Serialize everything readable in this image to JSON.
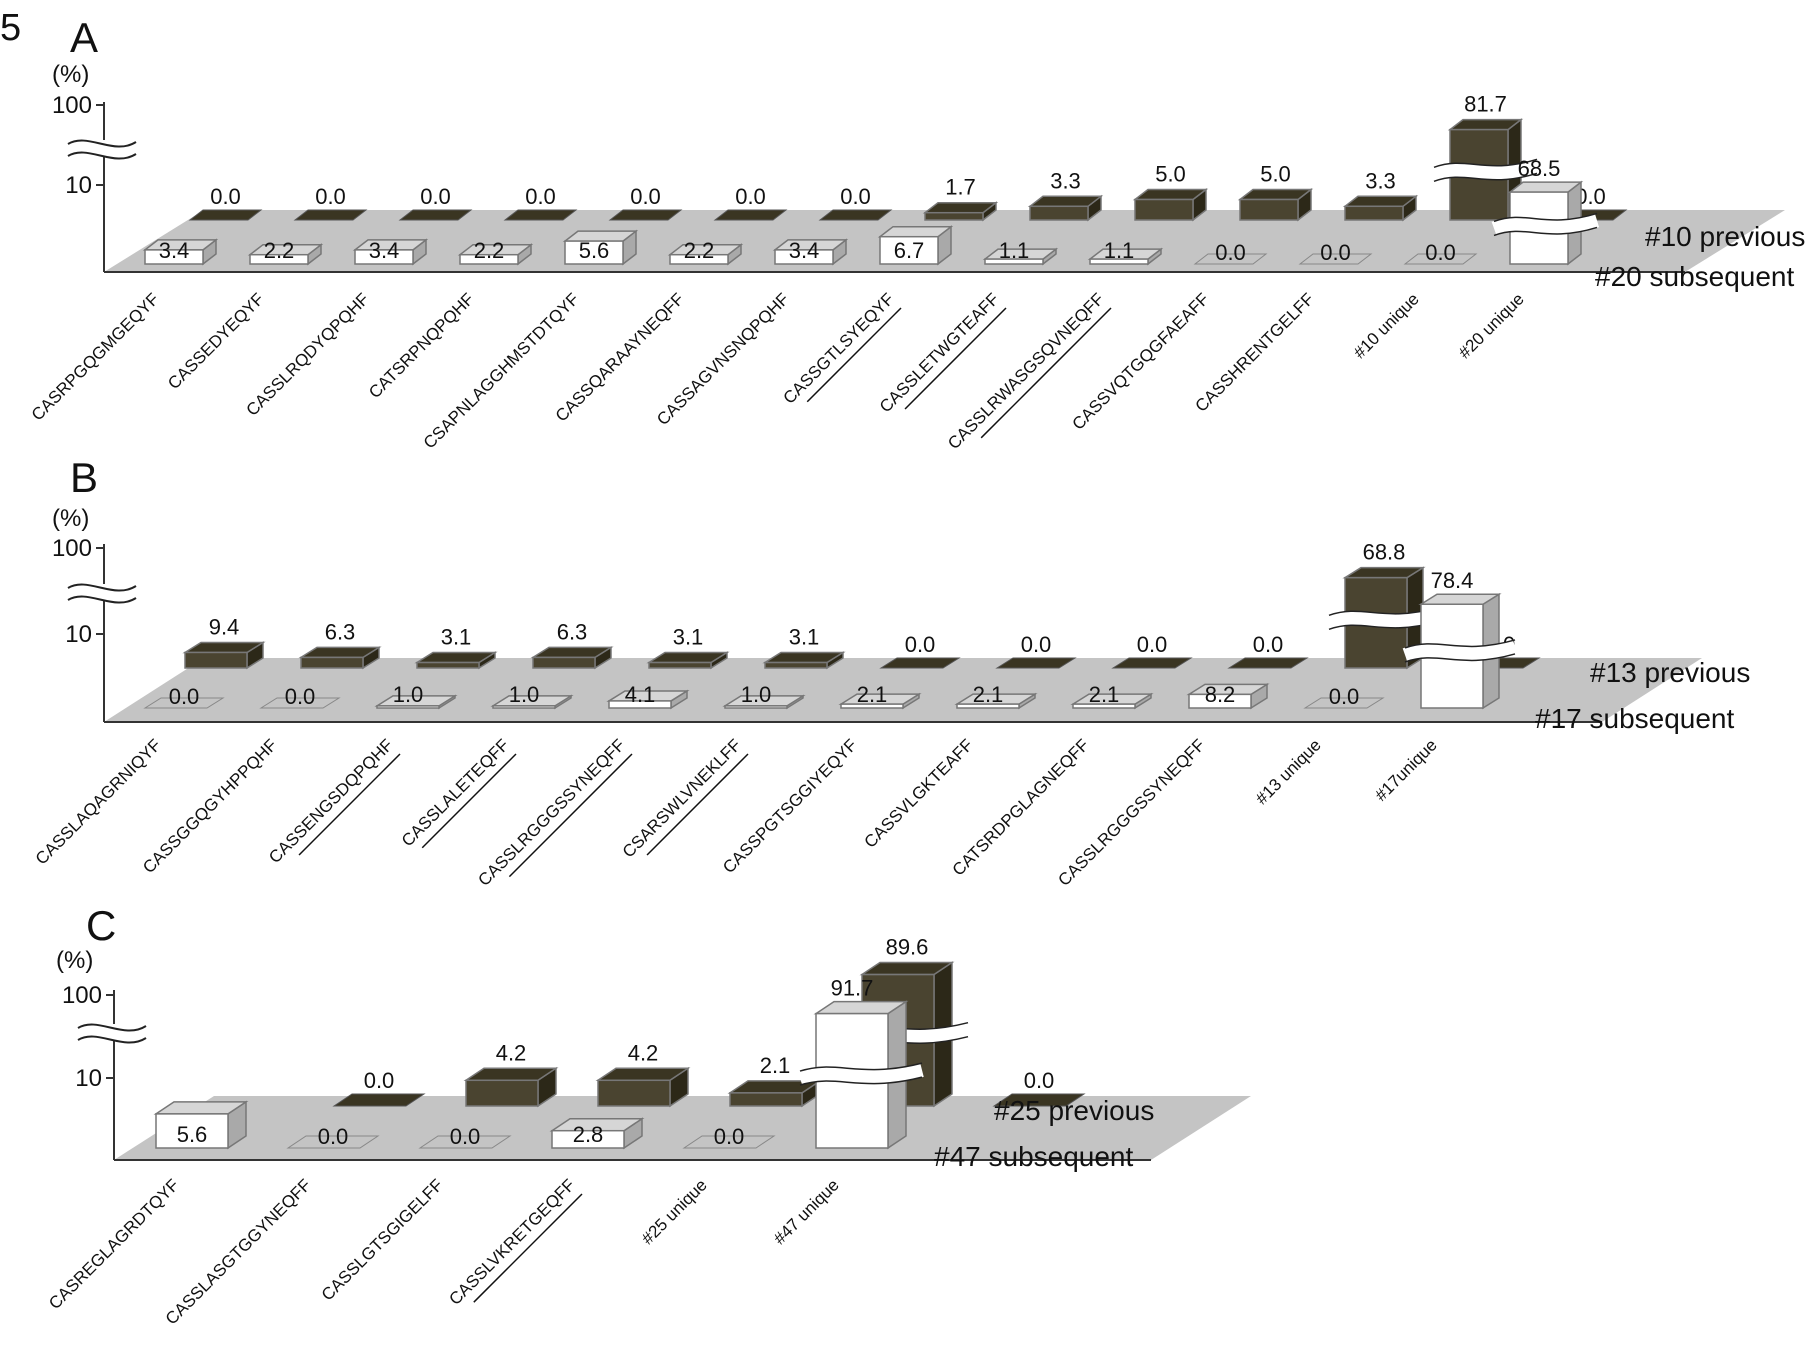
{
  "figure_label": "5",
  "colors": {
    "previous_front": "#4a4430",
    "previous_top": "#3a3522",
    "previous_side": "#2c2818",
    "subsequent_front": "#ffffff",
    "subsequent_top": "#d6d6d6",
    "subsequent_side": "#a9a9a9",
    "floor": "#c4c4c4",
    "axis": "#333333"
  },
  "chart_data": [
    {
      "panel": "A",
      "type": "bar",
      "y_unit": "(%)",
      "y_ticks": [
        "100",
        "10"
      ],
      "axis_break": true,
      "categories": [
        "CASRPGQGMGEQYF",
        "CASSEDYEQYF",
        "CASSLRQDYQPQHF",
        "CATSRPNQPQHF",
        "CSAPNLAGGHMSTDTQYF",
        "CASSQARAAYNEQFF",
        "CASSAGVNSNQPQHF",
        "CASSGTLSYEQYF",
        "CASSLETWGTEAFF",
        "CASSLRWASGSQVNEQFF",
        "CASSVQTGQGFAEAFF",
        "CASSHRENTGELFF",
        "#10 unique",
        "#20 unique"
      ],
      "underlined": [
        false,
        false,
        false,
        false,
        false,
        false,
        false,
        true,
        true,
        true,
        false,
        false,
        false,
        false
      ],
      "series": [
        {
          "name": "#10 previous",
          "values": [
            0.0,
            0.0,
            0.0,
            0.0,
            0.0,
            0.0,
            0.0,
            1.7,
            3.3,
            5.0,
            5.0,
            3.3,
            81.7,
            0.0
          ]
        },
        {
          "name": "#20 subsequent",
          "values": [
            3.4,
            2.2,
            3.4,
            2.2,
            5.6,
            2.2,
            3.4,
            6.7,
            1.1,
            1.1,
            0.0,
            0.0,
            0.0,
            68.5
          ]
        }
      ]
    },
    {
      "panel": "B",
      "type": "bar",
      "y_unit": "(%)",
      "y_ticks": [
        "100",
        "10"
      ],
      "axis_break": true,
      "categories": [
        "CASSLAQAGRNIQYF",
        "CASSGGQGYHPPQHF",
        "CASSENGSDQPQHF",
        "CASSLALETEQFF",
        "CASSLRGGGSSYNEQFF",
        "CSARSWLVNEKLFF",
        "CASSPGTSGGIYEQYF",
        "CASSVLGKTEAFF",
        "CATSRDPGLAGNEQFF",
        "CASSLRGGGSSYNEQFF",
        "#13 unique",
        "#17unique"
      ],
      "underlined": [
        false,
        false,
        true,
        true,
        true,
        true,
        false,
        false,
        false,
        false,
        false,
        false
      ],
      "series": [
        {
          "name": "#13 previous",
          "values": [
            9.4,
            6.3,
            3.1,
            6.3,
            3.1,
            3.1,
            0.0,
            0.0,
            0.0,
            0.0,
            68.8,
            0.0
          ]
        },
        {
          "name": "#17 subsequent",
          "values": [
            0.0,
            0.0,
            1.0,
            1.0,
            4.1,
            1.0,
            2.1,
            2.1,
            2.1,
            8.2,
            0.0,
            78.4
          ]
        }
      ]
    },
    {
      "panel": "C",
      "type": "bar",
      "y_unit": "(%)",
      "y_ticks": [
        "100",
        "10"
      ],
      "axis_break": true,
      "categories": [
        "CASREGLAGRDTQYF",
        "CASSLASGTGGYNEQFF",
        "CASSLGTSGIGELFF",
        "CASSLVKRETGEQFF",
        "#25 unique",
        "#47 unique"
      ],
      "underlined": [
        false,
        false,
        false,
        true,
        false,
        false
      ],
      "series": [
        {
          "name": "#25 previous",
          "values": [
            0.0,
            4.2,
            4.2,
            2.1,
            89.6,
            0.0
          ]
        },
        {
          "name": "#47 subsequent",
          "values": [
            5.6,
            0.0,
            0.0,
            2.8,
            0.0,
            91.7
          ]
        }
      ]
    }
  ]
}
